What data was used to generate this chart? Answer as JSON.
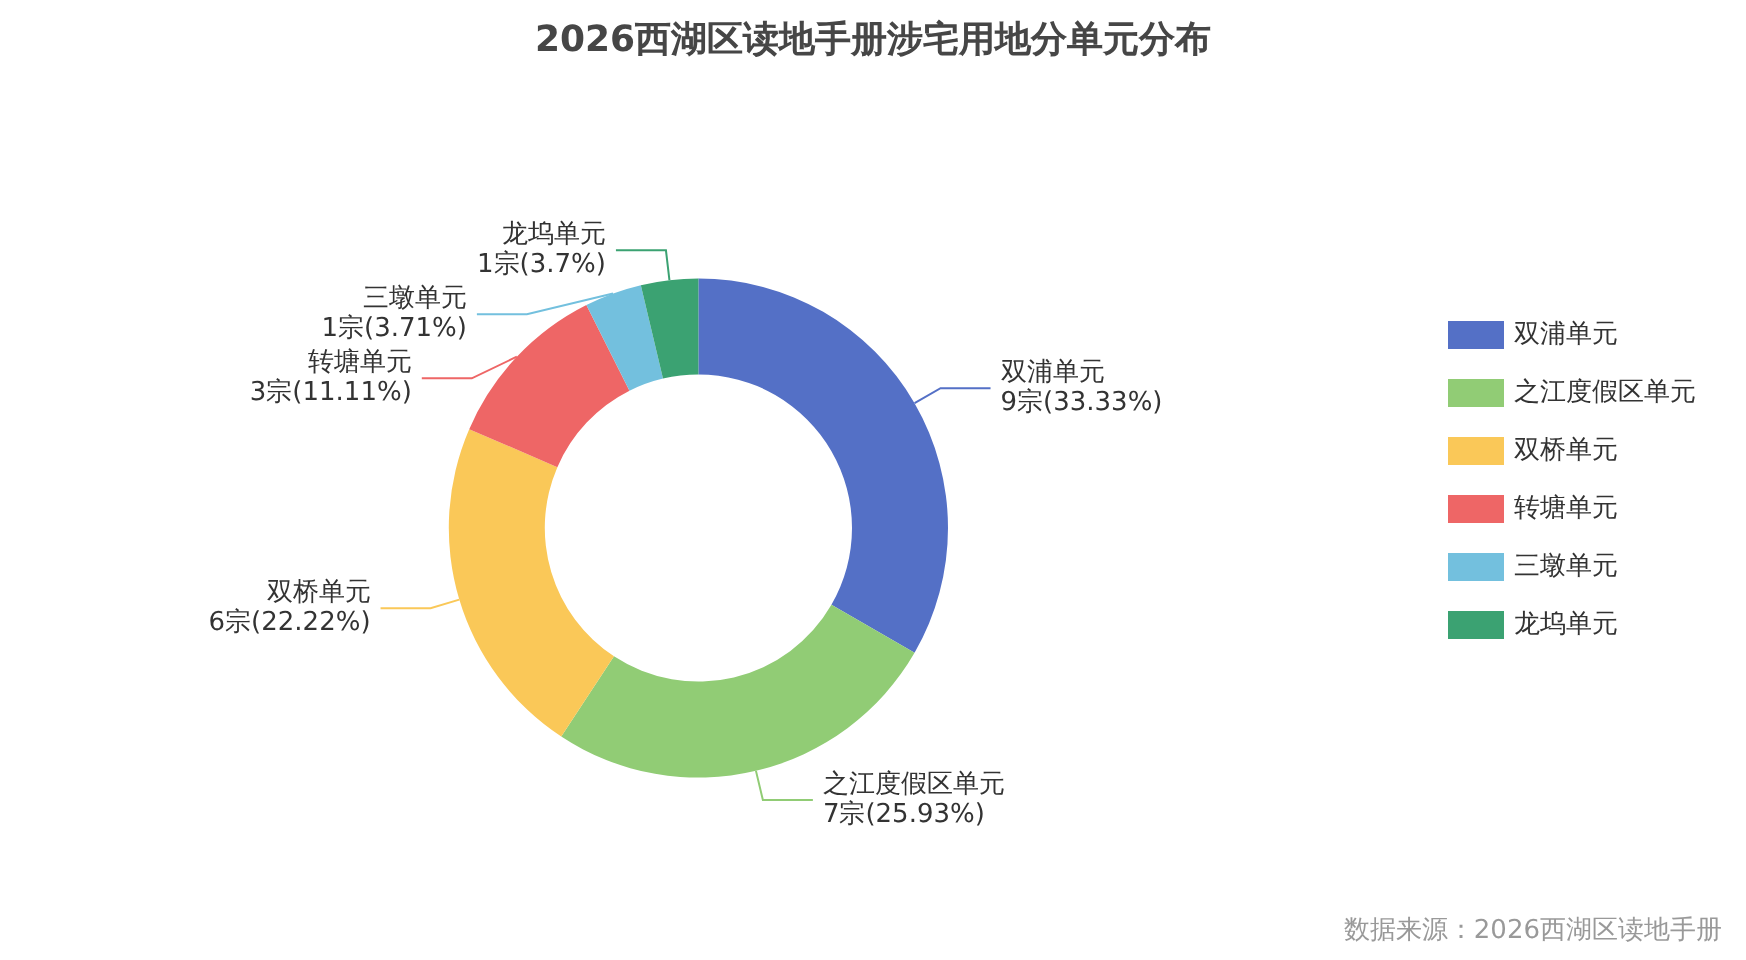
{
  "chart_data": {
    "type": "donut",
    "title": "2026西湖区读地手册涉宅用地分单元分布",
    "categories": [
      "双浦单元",
      "之江度假区单元",
      "双桥单元",
      "转塘单元",
      "三墩单元",
      "龙坞单元"
    ],
    "values": [
      9,
      7,
      6,
      3,
      1,
      1
    ],
    "colors": [
      "#5470c6",
      "#91cc75",
      "#fac858",
      "#ee6666",
      "#73c0de",
      "#3ba272"
    ],
    "value_labels": [
      "9宗(33.33%)",
      "7宗(25.93%)",
      "6宗(22.22%)",
      "3宗(11.11%)",
      "1宗(3.71%)",
      "1宗(3.7%)"
    ],
    "legend": "right",
    "annotations": [
      "数据来源：2026西湖区读地手册"
    ]
  }
}
